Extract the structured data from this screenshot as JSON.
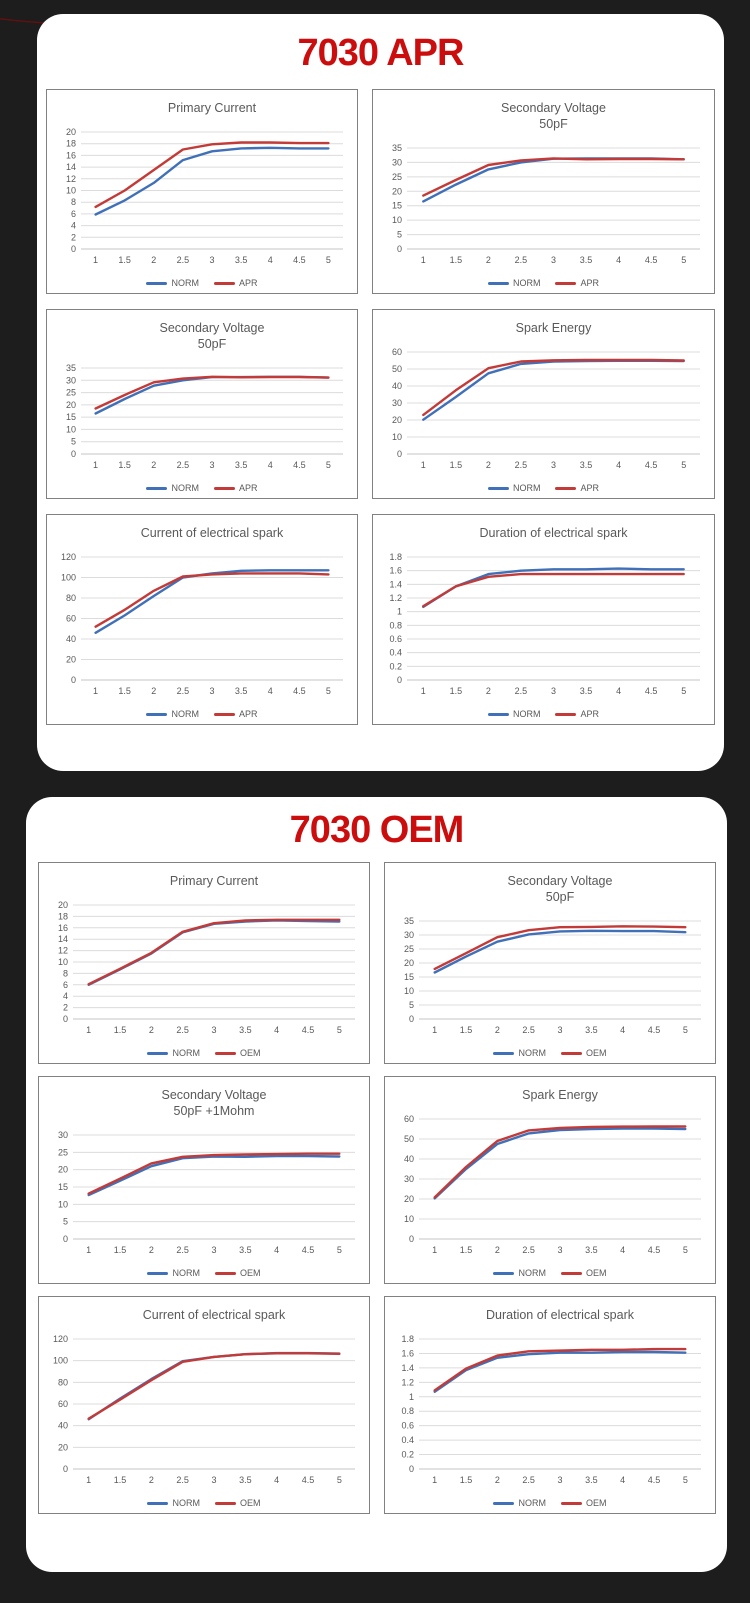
{
  "theme": {
    "page_background": "#1d1d1d",
    "panel_background": "#ffffff",
    "panel_title_red": "#cc0d0d",
    "series_blue": "#4070B8",
    "series_red": "#C23B38",
    "grid_line": "#dcdcdc",
    "axis_line": "#c6c6c6",
    "chart_text": "#595959",
    "chart_border": "#818181",
    "arc_decoration": "#6e100f"
  },
  "panels": [
    {
      "title": "7030 APR",
      "variant_series_name": "APR"
    },
    {
      "title": "7030 OEM",
      "variant_series_name": "OEM"
    }
  ],
  "chart_data": [
    {
      "type": "line",
      "panel": "7030 APR",
      "panel_index": 0,
      "title": "Primary Current",
      "title_lines": [
        "Primary Current"
      ],
      "xlabel": "",
      "ylabel": "",
      "grid": true,
      "legend_position": "bottom",
      "x": [
        1,
        1.5,
        2,
        2.5,
        3,
        3.5,
        4,
        4.5,
        5
      ],
      "ylim": [
        0,
        20
      ],
      "ystep": 2,
      "series": [
        {
          "name": "NORM",
          "color": "#4070B8",
          "values": [
            5.9,
            8.3,
            11.3,
            15.2,
            16.7,
            17.2,
            17.3,
            17.2,
            17.2
          ]
        },
        {
          "name": "APR",
          "color": "#C23B38",
          "values": [
            7.2,
            10.0,
            13.5,
            17.0,
            17.9,
            18.2,
            18.2,
            18.1,
            18.1
          ]
        }
      ]
    },
    {
      "type": "line",
      "panel": "7030 APR",
      "panel_index": 0,
      "title": "Secondary Voltage 50pF",
      "title_lines": [
        "Secondary Voltage",
        "50pF"
      ],
      "xlabel": "",
      "ylabel": "",
      "grid": true,
      "legend_position": "bottom",
      "x": [
        1,
        1.5,
        2,
        2.5,
        3,
        3.5,
        4,
        4.5,
        5
      ],
      "ylim": [
        0,
        35
      ],
      "ystep": 5,
      "series": [
        {
          "name": "NORM",
          "color": "#4070B8",
          "values": [
            16.5,
            22.3,
            27.6,
            30.0,
            31.3,
            31.4,
            31.4,
            31.4,
            31.1
          ]
        },
        {
          "name": "APR",
          "color": "#C23B38",
          "values": [
            18.5,
            23.9,
            29.1,
            30.7,
            31.4,
            31.1,
            31.2,
            31.2,
            31.1
          ]
        }
      ]
    },
    {
      "type": "line",
      "panel": "7030 APR",
      "panel_index": 0,
      "title": "Secondary Voltage 50pF",
      "title_lines": [
        "Secondary Voltage",
        "50pF"
      ],
      "xlabel": "",
      "ylabel": "",
      "grid": true,
      "legend_position": "bottom",
      "x": [
        1,
        1.5,
        2,
        2.5,
        3,
        3.5,
        4,
        4.5,
        5
      ],
      "ylim": [
        0,
        35
      ],
      "ystep": 5,
      "series": [
        {
          "name": "NORM",
          "color": "#4070B8",
          "values": [
            16.5,
            22.4,
            27.8,
            30.0,
            31.3,
            31.3,
            31.4,
            31.4,
            31.1
          ]
        },
        {
          "name": "APR",
          "color": "#C23B38",
          "values": [
            18.5,
            24.0,
            29.2,
            30.7,
            31.4,
            31.2,
            31.3,
            31.3,
            31.1
          ]
        }
      ]
    },
    {
      "type": "line",
      "panel": "7030 APR",
      "panel_index": 0,
      "title": "Spark Energy",
      "title_lines": [
        "Spark Energy"
      ],
      "xlabel": "",
      "ylabel": "",
      "grid": true,
      "legend_position": "bottom",
      "x": [
        1,
        1.5,
        2,
        2.5,
        3,
        3.5,
        4,
        4.5,
        5
      ],
      "ylim": [
        0,
        60
      ],
      "ystep": 10,
      "series": [
        {
          "name": "NORM",
          "color": "#4070B8",
          "values": [
            20.2,
            33.5,
            47.5,
            53.0,
            54.4,
            54.7,
            54.8,
            54.8,
            54.7
          ]
        },
        {
          "name": "APR",
          "color": "#C23B38",
          "values": [
            23.0,
            37.5,
            50.5,
            54.4,
            55.1,
            55.3,
            55.3,
            55.3,
            55.0
          ]
        }
      ]
    },
    {
      "type": "line",
      "panel": "7030 APR",
      "panel_index": 0,
      "title": "Current of electrical spark",
      "title_lines": [
        "Current of electrical spark"
      ],
      "xlabel": "",
      "ylabel": "",
      "grid": true,
      "legend_position": "bottom",
      "x": [
        1,
        1.5,
        2,
        2.5,
        3,
        3.5,
        4,
        4.5,
        5
      ],
      "ylim": [
        0,
        120
      ],
      "ystep": 20,
      "series": [
        {
          "name": "NORM",
          "color": "#4070B8",
          "values": [
            46,
            63,
            82,
            100,
            104,
            106.5,
            107,
            107,
            107
          ]
        },
        {
          "name": "APR",
          "color": "#C23B38",
          "values": [
            52,
            68.5,
            87,
            101,
            103,
            104,
            104,
            104,
            103
          ]
        }
      ]
    },
    {
      "type": "line",
      "panel": "7030 APR",
      "panel_index": 0,
      "title": "Duration of electrical spark",
      "title_lines": [
        "Duration of electrical spark"
      ],
      "xlabel": "",
      "ylabel": "",
      "grid": true,
      "legend_position": "bottom",
      "x": [
        1,
        1.5,
        2,
        2.5,
        3,
        3.5,
        4,
        4.5,
        5
      ],
      "ylim": [
        0,
        1.8
      ],
      "ystep": 0.2,
      "series": [
        {
          "name": "NORM",
          "color": "#4070B8",
          "values": [
            1.07,
            1.37,
            1.55,
            1.6,
            1.62,
            1.62,
            1.63,
            1.62,
            1.62
          ]
        },
        {
          "name": "APR",
          "color": "#C23B38",
          "values": [
            1.08,
            1.37,
            1.51,
            1.55,
            1.55,
            1.55,
            1.55,
            1.55,
            1.55
          ]
        }
      ]
    },
    {
      "type": "line",
      "panel": "7030 OEM",
      "panel_index": 1,
      "title": "Primary Current",
      "title_lines": [
        "Primary Current"
      ],
      "xlabel": "",
      "ylabel": "",
      "grid": true,
      "legend_position": "bottom",
      "x": [
        1,
        1.5,
        2,
        2.5,
        3,
        3.5,
        4,
        4.5,
        5
      ],
      "ylim": [
        0,
        20
      ],
      "ystep": 2,
      "series": [
        {
          "name": "NORM",
          "color": "#4070B8",
          "values": [
            6.0,
            8.7,
            11.5,
            15.2,
            16.7,
            17.1,
            17.3,
            17.2,
            17.1
          ]
        },
        {
          "name": "OEM",
          "color": "#C23B38",
          "values": [
            6.1,
            8.8,
            11.6,
            15.3,
            16.8,
            17.3,
            17.4,
            17.4,
            17.4
          ]
        }
      ]
    },
    {
      "type": "line",
      "panel": "7030 OEM",
      "panel_index": 1,
      "title": "Secondary Voltage 50pF",
      "title_lines": [
        "Secondary Voltage",
        "50pF"
      ],
      "xlabel": "",
      "ylabel": "",
      "grid": true,
      "legend_position": "bottom",
      "x": [
        1,
        1.5,
        2,
        2.5,
        3,
        3.5,
        4,
        4.5,
        5
      ],
      "ylim": [
        0,
        35
      ],
      "ystep": 5,
      "series": [
        {
          "name": "NORM",
          "color": "#4070B8",
          "values": [
            16.6,
            22.3,
            27.6,
            30.2,
            31.3,
            31.5,
            31.4,
            31.4,
            31.0
          ]
        },
        {
          "name": "OEM",
          "color": "#C23B38",
          "values": [
            17.9,
            23.5,
            29.2,
            31.7,
            32.8,
            32.9,
            33.1,
            33.0,
            32.8
          ]
        }
      ]
    },
    {
      "type": "line",
      "panel": "7030 OEM",
      "panel_index": 1,
      "title": "Secondary Voltage 50pF +1Mohm",
      "title_lines": [
        "Secondary Voltage",
        "50pF +1Mohm"
      ],
      "xlabel": "",
      "ylabel": "",
      "grid": true,
      "legend_position": "bottom",
      "x": [
        1,
        1.5,
        2,
        2.5,
        3,
        3.5,
        4,
        4.5,
        5
      ],
      "ylim": [
        0,
        30
      ],
      "ystep": 5,
      "series": [
        {
          "name": "NORM",
          "color": "#4070B8",
          "values": [
            12.7,
            16.8,
            21.0,
            23.3,
            23.8,
            23.7,
            23.9,
            23.9,
            23.8
          ]
        },
        {
          "name": "OEM",
          "color": "#C23B38",
          "values": [
            13.1,
            17.4,
            21.8,
            23.7,
            24.2,
            24.4,
            24.5,
            24.6,
            24.6
          ]
        }
      ]
    },
    {
      "type": "line",
      "panel": "7030 OEM",
      "panel_index": 1,
      "title": "Spark Energy",
      "title_lines": [
        "Spark Energy"
      ],
      "xlabel": "",
      "ylabel": "",
      "grid": true,
      "legend_position": "bottom",
      "x": [
        1,
        1.5,
        2,
        2.5,
        3,
        3.5,
        4,
        4.5,
        5
      ],
      "ylim": [
        0,
        60
      ],
      "ystep": 10,
      "series": [
        {
          "name": "NORM",
          "color": "#4070B8",
          "values": [
            20.3,
            35.0,
            47.5,
            52.8,
            54.5,
            55.0,
            55.2,
            55.2,
            55.0
          ]
        },
        {
          "name": "OEM",
          "color": "#C23B38",
          "values": [
            20.8,
            36.0,
            49.0,
            54.3,
            55.5,
            56.0,
            56.2,
            56.3,
            56.3
          ]
        }
      ]
    },
    {
      "type": "line",
      "panel": "7030 OEM",
      "panel_index": 1,
      "title": "Current of electrical spark",
      "title_lines": [
        "Current of electrical spark"
      ],
      "xlabel": "",
      "ylabel": "",
      "grid": true,
      "legend_position": "bottom",
      "x": [
        1,
        1.5,
        2,
        2.5,
        3,
        3.5,
        4,
        4.5,
        5
      ],
      "ylim": [
        0,
        120
      ],
      "ystep": 20,
      "series": [
        {
          "name": "NORM",
          "color": "#4070B8",
          "values": [
            46.0,
            65.0,
            83.0,
            99.5,
            103.5,
            106.0,
            107.0,
            107.0,
            106.5
          ]
        },
        {
          "name": "OEM",
          "color": "#C23B38",
          "values": [
            46.5,
            64.0,
            82.0,
            99.0,
            103.5,
            106.0,
            106.8,
            106.8,
            106.3
          ]
        }
      ]
    },
    {
      "type": "line",
      "panel": "7030 OEM",
      "panel_index": 1,
      "title": "Duration of electrical spark",
      "title_lines": [
        "Duration of electrical spark"
      ],
      "xlabel": "",
      "ylabel": "",
      "grid": true,
      "legend_position": "bottom",
      "x": [
        1,
        1.5,
        2,
        2.5,
        3,
        3.5,
        4,
        4.5,
        5
      ],
      "ylim": [
        0,
        1.8
      ],
      "ystep": 0.2,
      "series": [
        {
          "name": "NORM",
          "color": "#4070B8",
          "values": [
            1.07,
            1.37,
            1.54,
            1.59,
            1.61,
            1.61,
            1.62,
            1.62,
            1.61
          ]
        },
        {
          "name": "OEM",
          "color": "#C23B38",
          "values": [
            1.09,
            1.39,
            1.57,
            1.63,
            1.64,
            1.65,
            1.65,
            1.66,
            1.66
          ]
        }
      ]
    }
  ]
}
